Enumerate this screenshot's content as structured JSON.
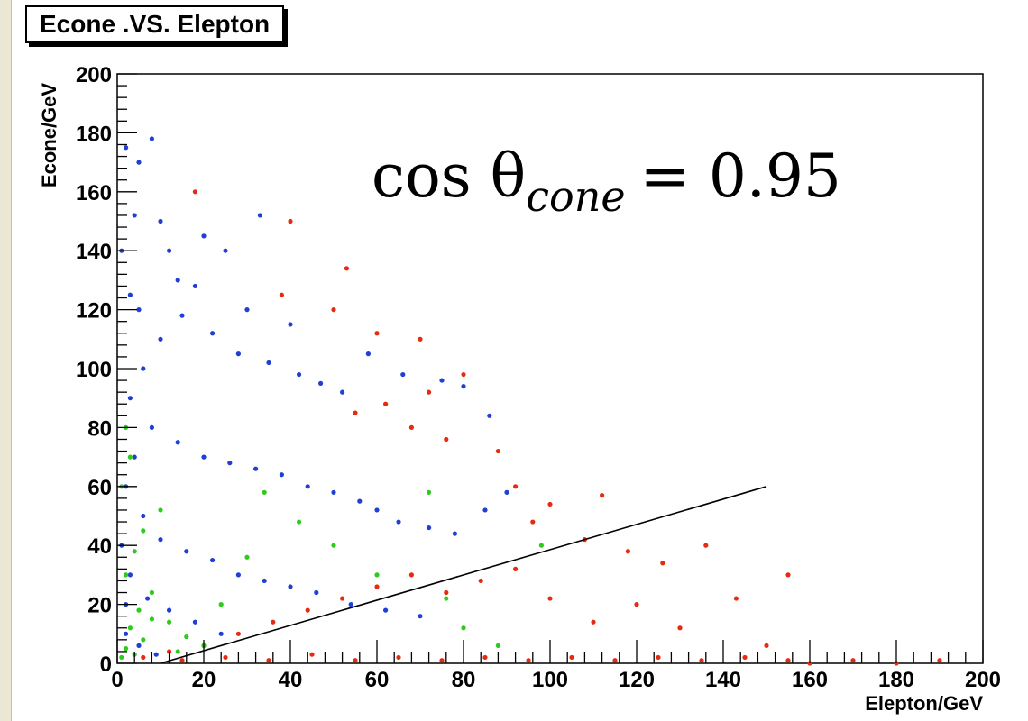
{
  "chart_data": {
    "type": "scatter",
    "title": "Econe .VS. Elepton",
    "xlabel": "Elepton/GeV",
    "ylabel": "Econe/GeV",
    "xlim": [
      0,
      200
    ],
    "ylim": [
      0,
      200
    ],
    "xticks": [
      "0",
      "20",
      "40",
      "60",
      "80",
      "100",
      "120",
      "140",
      "160",
      "180",
      "200"
    ],
    "yticks": [
      "0",
      "20",
      "40",
      "60",
      "80",
      "100",
      "120",
      "140",
      "160",
      "180",
      "200"
    ],
    "grid": false,
    "legend": null,
    "annotation": {
      "lhs": "cos θ",
      "subscript": "cone",
      "rhs": "= 0.95"
    },
    "cut_line": {
      "x": [
        10,
        150
      ],
      "y": [
        0,
        60
      ]
    },
    "series": [
      {
        "color": "#1f3fd6",
        "distribution": "dense near x=0, y spread 0–180, falls off with x up to ~90",
        "values": [
          [
            2,
            175
          ],
          [
            5,
            170
          ],
          [
            8,
            178
          ],
          [
            4,
            152
          ],
          [
            10,
            150
          ],
          [
            12,
            140
          ],
          [
            14,
            130
          ],
          [
            20,
            145
          ],
          [
            25,
            140
          ],
          [
            33,
            152
          ],
          [
            5,
            120
          ],
          [
            10,
            110
          ],
          [
            15,
            118
          ],
          [
            22,
            112
          ],
          [
            28,
            105
          ],
          [
            35,
            102
          ],
          [
            42,
            98
          ],
          [
            47,
            95
          ],
          [
            52,
            92
          ],
          [
            58,
            105
          ],
          [
            66,
            98
          ],
          [
            75,
            96
          ],
          [
            80,
            94
          ],
          [
            86,
            84
          ],
          [
            3,
            90
          ],
          [
            8,
            80
          ],
          [
            14,
            75
          ],
          [
            20,
            70
          ],
          [
            26,
            68
          ],
          [
            32,
            66
          ],
          [
            38,
            64
          ],
          [
            44,
            60
          ],
          [
            50,
            58
          ],
          [
            56,
            55
          ],
          [
            60,
            52
          ],
          [
            65,
            48
          ],
          [
            72,
            46
          ],
          [
            78,
            44
          ],
          [
            85,
            52
          ],
          [
            90,
            58
          ],
          [
            2,
            60
          ],
          [
            6,
            50
          ],
          [
            10,
            42
          ],
          [
            16,
            38
          ],
          [
            22,
            35
          ],
          [
            28,
            30
          ],
          [
            34,
            28
          ],
          [
            40,
            26
          ],
          [
            46,
            24
          ],
          [
            54,
            20
          ],
          [
            62,
            18
          ],
          [
            70,
            16
          ],
          [
            3,
            30
          ],
          [
            7,
            22
          ],
          [
            12,
            18
          ],
          [
            18,
            14
          ],
          [
            24,
            10
          ],
          [
            2,
            10
          ],
          [
            5,
            6
          ],
          [
            9,
            3
          ],
          [
            1,
            140
          ],
          [
            3,
            125
          ],
          [
            6,
            100
          ],
          [
            4,
            70
          ],
          [
            1,
            40
          ],
          [
            2,
            20
          ],
          [
            18,
            128
          ],
          [
            30,
            120
          ],
          [
            40,
            115
          ]
        ]
      },
      {
        "color": "#e82b10",
        "distribution": "concentrated along y≈0 for x 0–155, sparse up to y≈150",
        "values": [
          [
            18,
            160
          ],
          [
            40,
            150
          ],
          [
            53,
            134
          ],
          [
            38,
            125
          ],
          [
            50,
            120
          ],
          [
            60,
            112
          ],
          [
            70,
            110
          ],
          [
            80,
            98
          ],
          [
            72,
            92
          ],
          [
            62,
            88
          ],
          [
            55,
            85
          ],
          [
            68,
            80
          ],
          [
            76,
            76
          ],
          [
            88,
            72
          ],
          [
            92,
            60
          ],
          [
            100,
            54
          ],
          [
            112,
            57
          ],
          [
            96,
            48
          ],
          [
            108,
            42
          ],
          [
            118,
            38
          ],
          [
            126,
            34
          ],
          [
            136,
            40
          ],
          [
            143,
            22
          ],
          [
            155,
            30
          ],
          [
            150,
            6
          ],
          [
            130,
            12
          ],
          [
            120,
            20
          ],
          [
            110,
            14
          ],
          [
            100,
            22
          ],
          [
            92,
            32
          ],
          [
            84,
            28
          ],
          [
            76,
            24
          ],
          [
            68,
            30
          ],
          [
            60,
            26
          ],
          [
            52,
            22
          ],
          [
            44,
            18
          ],
          [
            36,
            14
          ],
          [
            28,
            10
          ],
          [
            20,
            6
          ],
          [
            12,
            4
          ],
          [
            6,
            2
          ],
          [
            15,
            1
          ],
          [
            25,
            2
          ],
          [
            35,
            1
          ],
          [
            45,
            3
          ],
          [
            55,
            1
          ],
          [
            65,
            2
          ],
          [
            75,
            1
          ],
          [
            85,
            2
          ],
          [
            95,
            1
          ],
          [
            105,
            2
          ],
          [
            115,
            1
          ],
          [
            125,
            2
          ],
          [
            135,
            1
          ],
          [
            145,
            2
          ],
          [
            155,
            1
          ],
          [
            160,
            0
          ],
          [
            170,
            1
          ],
          [
            180,
            0
          ],
          [
            190,
            1
          ]
        ]
      },
      {
        "color": "#2ecc1a",
        "distribution": "near x=0, y 0–80, a few scattered",
        "values": [
          [
            1,
            2
          ],
          [
            2,
            5
          ],
          [
            4,
            3
          ],
          [
            6,
            8
          ],
          [
            3,
            12
          ],
          [
            5,
            18
          ],
          [
            8,
            24
          ],
          [
            2,
            30
          ],
          [
            4,
            38
          ],
          [
            6,
            45
          ],
          [
            10,
            52
          ],
          [
            12,
            14
          ],
          [
            16,
            9
          ],
          [
            20,
            6
          ],
          [
            24,
            20
          ],
          [
            30,
            36
          ],
          [
            34,
            58
          ],
          [
            42,
            48
          ],
          [
            50,
            40
          ],
          [
            60,
            30
          ],
          [
            72,
            58
          ],
          [
            76,
            22
          ],
          [
            80,
            12
          ],
          [
            88,
            6
          ],
          [
            98,
            40
          ],
          [
            1,
            60
          ],
          [
            3,
            70
          ],
          [
            2,
            80
          ],
          [
            8,
            15
          ],
          [
            14,
            4
          ]
        ]
      }
    ]
  }
}
